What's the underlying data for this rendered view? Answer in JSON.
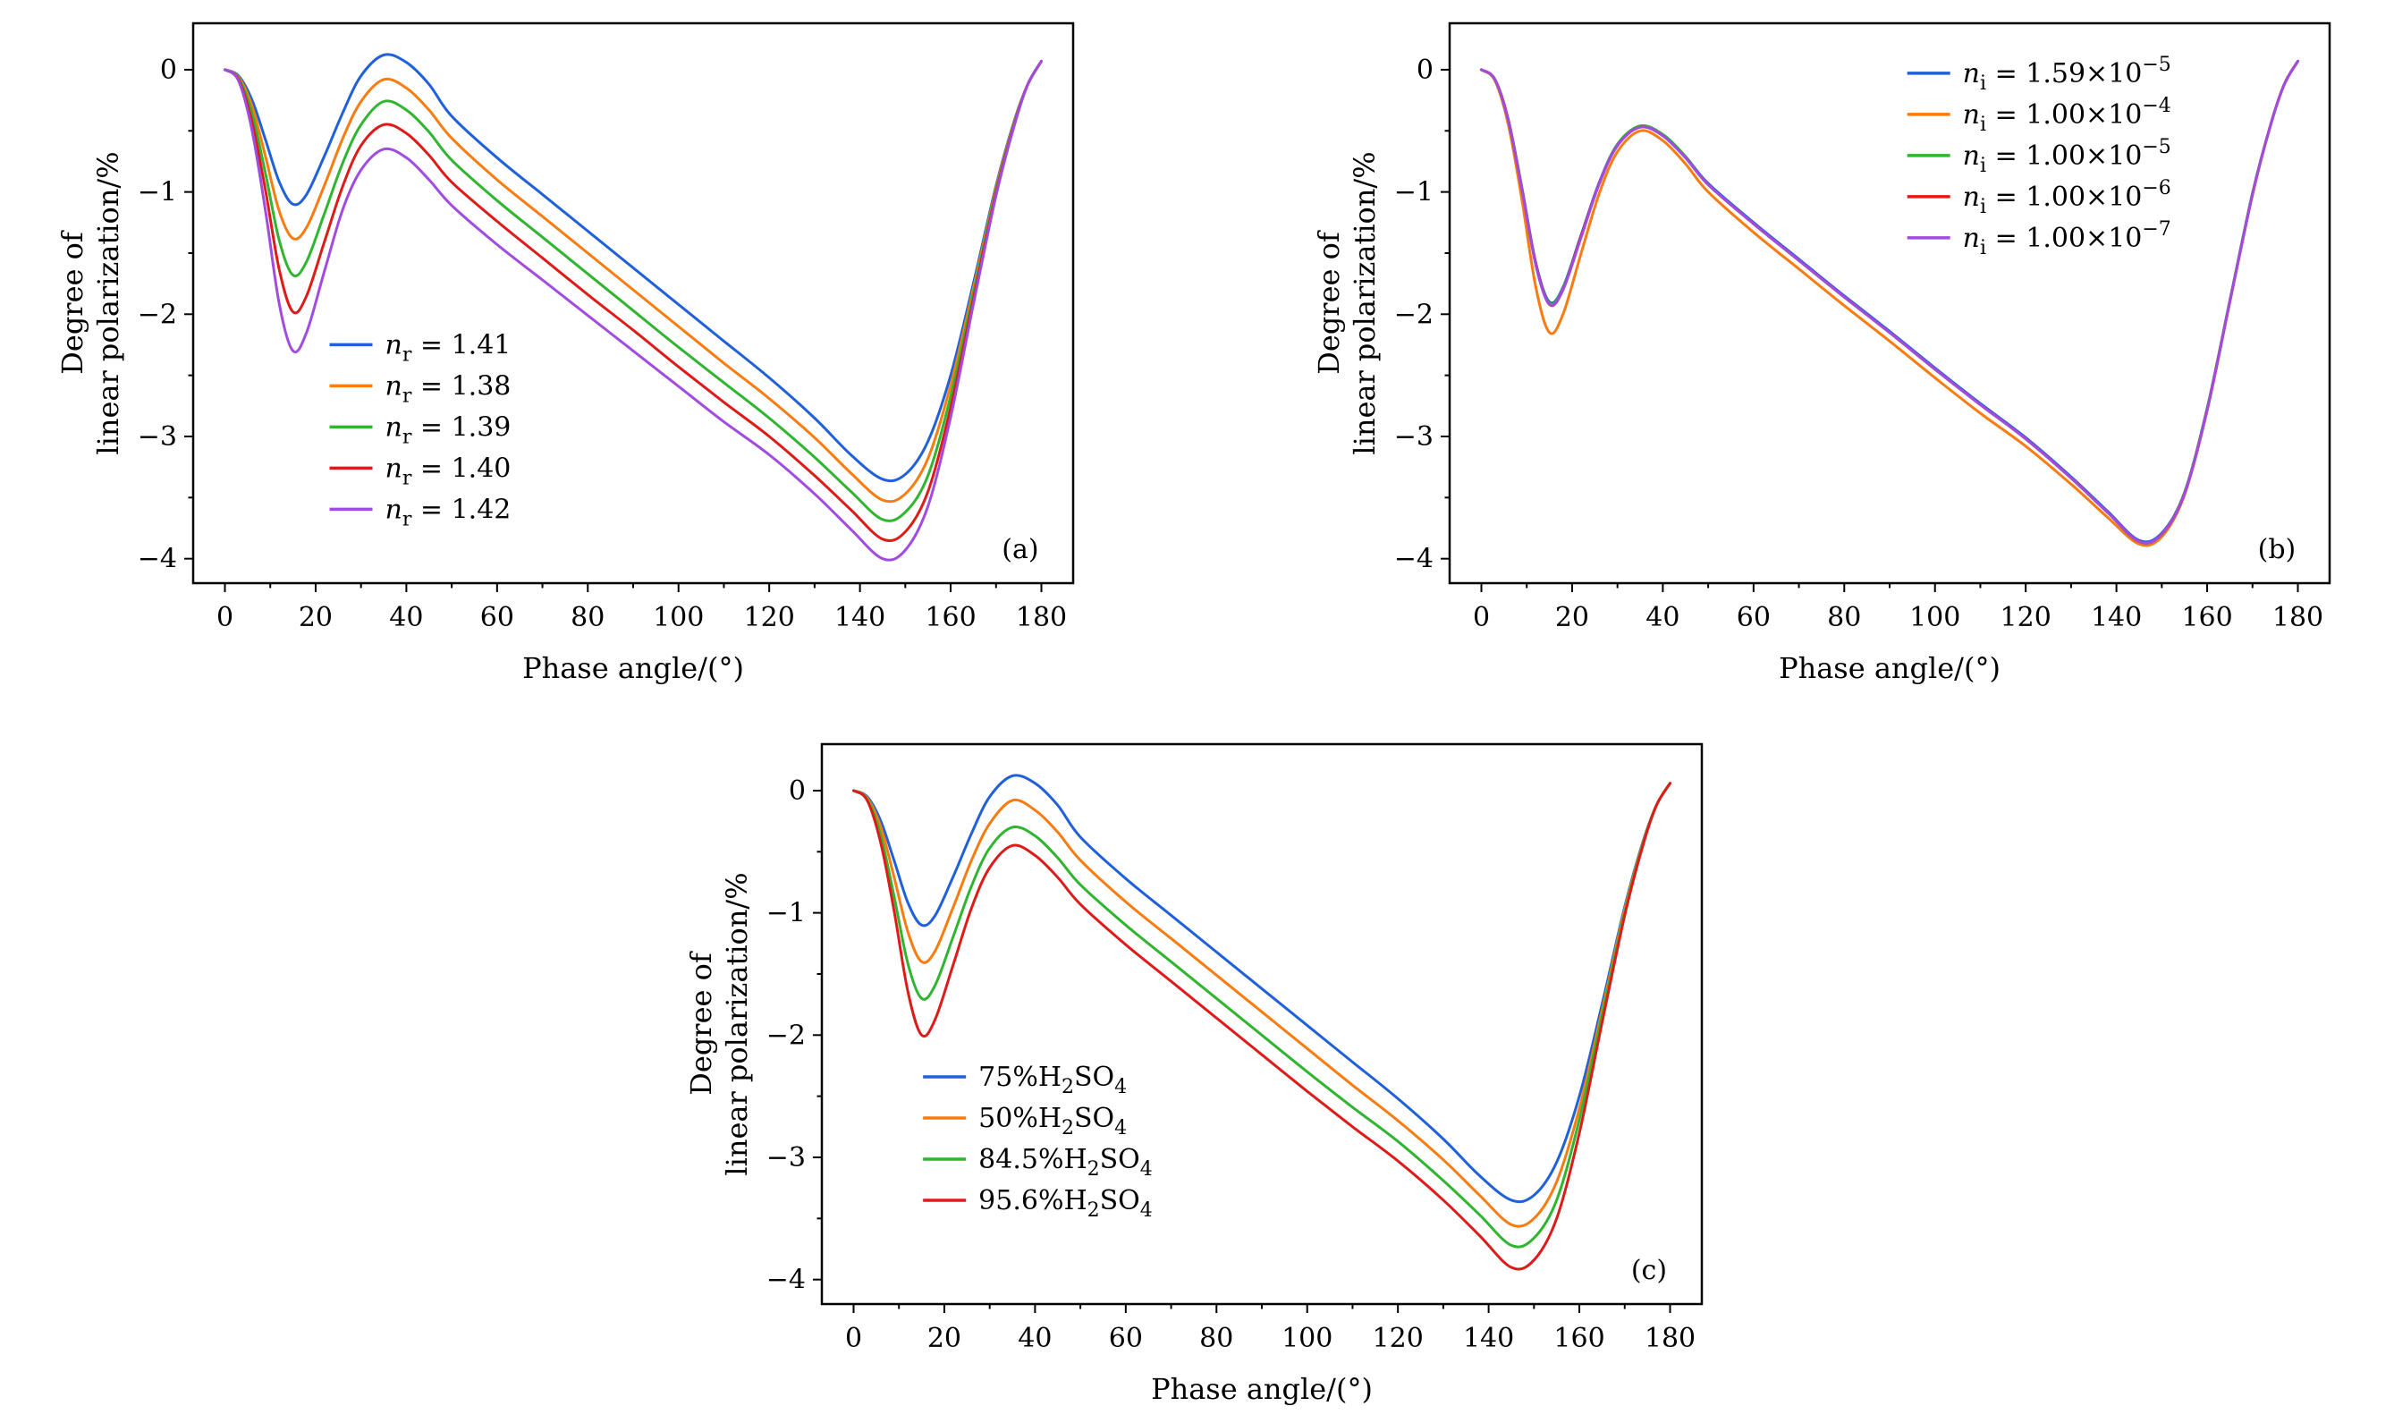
{
  "figure": {
    "background": "#ffffff",
    "frame_color": "#000000",
    "text_color": "#000000"
  },
  "chart_data": {
    "type": "line",
    "x_deg": [
      0,
      3,
      6,
      9,
      12,
      15,
      18,
      22,
      26,
      30,
      35,
      40,
      45,
      50,
      60,
      70,
      80,
      90,
      100,
      110,
      120,
      130,
      138,
      145,
      150,
      155,
      160,
      165,
      170,
      174,
      177,
      180
    ],
    "charts": [
      {
        "id": "a",
        "corner_label": "(a)",
        "xlabel": "Phase angle/(°)",
        "ylabel": [
          "Degree of",
          "linear polarization/%"
        ],
        "xlim": [
          -7,
          187
        ],
        "ylim": [
          -4.2,
          0.38
        ],
        "xticks": [
          0,
          20,
          40,
          60,
          80,
          100,
          120,
          140,
          160,
          180
        ],
        "yticks": [
          0,
          -1,
          -2,
          -3,
          -4
        ],
        "x_minor": 10,
        "y_minor": 0.5,
        "grid": false,
        "legend": {
          "position": "center-left",
          "fx": 0.155,
          "fy": 0.555
        },
        "series": [
          {
            "name": "nr = 1.41",
            "color": "#2061d9",
            "label_parts": [
              {
                "t": "n",
                "i": true
              },
              {
                "t": "r",
                "s": -1
              },
              {
                "t": " = 1.41"
              }
            ],
            "y": [
              0,
              -0.05,
              -0.25,
              -0.58,
              -0.92,
              -1.1,
              -1.02,
              -0.7,
              -0.35,
              -0.05,
              0.12,
              0.06,
              -0.12,
              -0.38,
              -0.72,
              -1.02,
              -1.32,
              -1.62,
              -1.92,
              -2.22,
              -2.52,
              -2.85,
              -3.15,
              -3.35,
              -3.31,
              -3.04,
              -2.5,
              -1.75,
              -0.95,
              -0.42,
              -0.12,
              0.07
            ]
          },
          {
            "name": "nr = 1.38",
            "color": "#f97c10",
            "label_parts": [
              {
                "t": "n",
                "i": true
              },
              {
                "t": "r",
                "s": -1
              },
              {
                "t": " = 1.38"
              }
            ],
            "y": [
              0,
              -0.06,
              -0.3,
              -0.72,
              -1.16,
              -1.38,
              -1.29,
              -0.94,
              -0.56,
              -0.26,
              -0.08,
              -0.15,
              -0.33,
              -0.56,
              -0.9,
              -1.2,
              -1.5,
              -1.8,
              -2.1,
              -2.4,
              -2.69,
              -3.01,
              -3.3,
              -3.52,
              -3.47,
              -3.18,
              -2.58,
              -1.79,
              -0.97,
              -0.43,
              -0.12,
              0.07
            ]
          },
          {
            "name": "nr = 1.39",
            "color": "#2fb52f",
            "label_parts": [
              {
                "t": "n",
                "i": true
              },
              {
                "t": "r",
                "s": -1
              },
              {
                "t": " = 1.39"
              }
            ],
            "y": [
              0,
              -0.07,
              -0.36,
              -0.86,
              -1.4,
              -1.68,
              -1.57,
              -1.17,
              -0.76,
              -0.45,
              -0.26,
              -0.33,
              -0.51,
              -0.74,
              -1.07,
              -1.37,
              -1.67,
              -1.97,
              -2.27,
              -2.56,
              -2.85,
              -3.17,
              -3.45,
              -3.68,
              -3.62,
              -3.32,
              -2.67,
              -1.83,
              -0.99,
              -0.44,
              -0.12,
              0.07
            ]
          },
          {
            "name": "nr = 1.40",
            "color": "#dd1c1a",
            "label_parts": [
              {
                "t": "n",
                "i": true
              },
              {
                "t": "r",
                "s": -1
              },
              {
                "t": " = 1.40"
              }
            ],
            "y": [
              0,
              -0.08,
              -0.43,
              -1.0,
              -1.64,
              -1.98,
              -1.85,
              -1.4,
              -0.95,
              -0.62,
              -0.45,
              -0.52,
              -0.7,
              -0.92,
              -1.24,
              -1.54,
              -1.84,
              -2.13,
              -2.43,
              -2.72,
              -3.0,
              -3.32,
              -3.6,
              -3.84,
              -3.78,
              -3.45,
              -2.76,
              -1.88,
              -1.01,
              -0.45,
              -0.12,
              0.07
            ]
          },
          {
            "name": "nr = 1.42",
            "color": "#a24be0",
            "label_parts": [
              {
                "t": "n",
                "i": true
              },
              {
                "t": "r",
                "s": -1
              },
              {
                "t": " = 1.42"
              }
            ],
            "y": [
              0,
              -0.09,
              -0.5,
              -1.17,
              -1.92,
              -2.3,
              -2.15,
              -1.64,
              -1.14,
              -0.82,
              -0.65,
              -0.72,
              -0.9,
              -1.11,
              -1.43,
              -1.72,
              -2.01,
              -2.3,
              -2.59,
              -2.88,
              -3.15,
              -3.47,
              -3.76,
              -4.0,
              -3.93,
              -3.57,
              -2.84,
              -1.92,
              -1.03,
              -0.46,
              -0.12,
              0.07
            ]
          }
        ]
      },
      {
        "id": "b",
        "corner_label": "(b)",
        "xlabel": "Phase angle/(°)",
        "ylabel": [
          "Degree of",
          "linear polarization/%"
        ],
        "xlim": [
          -7,
          187
        ],
        "ylim": [
          -4.2,
          0.38
        ],
        "xticks": [
          0,
          20,
          40,
          60,
          80,
          100,
          120,
          140,
          160,
          180
        ],
        "yticks": [
          0,
          -1,
          -2,
          -3,
          -4
        ],
        "x_minor": 10,
        "y_minor": 0.5,
        "grid": false,
        "legend": {
          "position": "top-right",
          "fx": 0.52,
          "fy": 0.07
        },
        "series": [
          {
            "name": "ni = 1.59e-5",
            "color": "#2061d9",
            "label_parts": [
              {
                "t": "n",
                "i": true
              },
              {
                "t": "i",
                "s": -1
              },
              {
                "t": " = 1.59×10"
              },
              {
                "t": "−5",
                "s": 1
              }
            ],
            "y": [
              0,
              -0.08,
              -0.42,
              -0.98,
              -1.58,
              -1.9,
              -1.78,
              -1.35,
              -0.92,
              -0.61,
              -0.46,
              -0.53,
              -0.71,
              -0.93,
              -1.25,
              -1.55,
              -1.85,
              -2.14,
              -2.44,
              -2.73,
              -3.01,
              -3.33,
              -3.61,
              -3.85,
              -3.79,
              -3.46,
              -2.77,
              -1.89,
              -1.01,
              -0.45,
              -0.12,
              0.07
            ]
          },
          {
            "name": "ni = 1.00e-4",
            "color": "#f97c10",
            "label_parts": [
              {
                "t": "n",
                "i": true
              },
              {
                "t": "i",
                "s": -1
              },
              {
                "t": " = 1.00×10"
              },
              {
                "t": "−4",
                "s": 1
              }
            ],
            "y": [
              0,
              -0.09,
              -0.46,
              -1.08,
              -1.78,
              -2.15,
              -2.0,
              -1.5,
              -1.01,
              -0.67,
              -0.5,
              -0.58,
              -0.77,
              -1.0,
              -1.33,
              -1.63,
              -1.93,
              -2.22,
              -2.52,
              -2.81,
              -3.08,
              -3.39,
              -3.66,
              -3.88,
              -3.82,
              -3.48,
              -2.79,
              -1.9,
              -1.02,
              -0.45,
              -0.12,
              0.07
            ]
          },
          {
            "name": "ni = 1.00e-5",
            "color": "#2fb52f",
            "label_parts": [
              {
                "t": "n",
                "i": true
              },
              {
                "t": "i",
                "s": -1
              },
              {
                "t": " = 1.00×10"
              },
              {
                "t": "−5",
                "s": 1
              }
            ],
            "y": [
              0,
              -0.08,
              -0.42,
              -0.98,
              -1.59,
              -1.91,
              -1.79,
              -1.36,
              -0.93,
              -0.61,
              -0.46,
              -0.53,
              -0.71,
              -0.94,
              -1.26,
              -1.56,
              -1.86,
              -2.15,
              -2.45,
              -2.74,
              -3.02,
              -3.34,
              -3.62,
              -3.86,
              -3.8,
              -3.46,
              -2.77,
              -1.89,
              -1.01,
              -0.45,
              -0.12,
              0.07
            ]
          },
          {
            "name": "ni = 1.00e-6",
            "color": "#dd1c1a",
            "label_parts": [
              {
                "t": "n",
                "i": true
              },
              {
                "t": "i",
                "s": -1
              },
              {
                "t": " = 1.00×10"
              },
              {
                "t": "−6",
                "s": 1
              }
            ],
            "y": [
              0,
              -0.08,
              -0.42,
              -0.99,
              -1.59,
              -1.92,
              -1.8,
              -1.36,
              -0.93,
              -0.62,
              -0.47,
              -0.54,
              -0.72,
              -0.94,
              -1.26,
              -1.56,
              -1.86,
              -2.15,
              -2.45,
              -2.74,
              -3.02,
              -3.34,
              -3.62,
              -3.86,
              -3.8,
              -3.47,
              -2.78,
              -1.9,
              -1.02,
              -0.45,
              -0.12,
              0.07
            ]
          },
          {
            "name": "ni = 1.00e-7",
            "color": "#a24be0",
            "label_parts": [
              {
                "t": "n",
                "i": true
              },
              {
                "t": "i",
                "s": -1
              },
              {
                "t": " = 1.00×10"
              },
              {
                "t": "−7",
                "s": 1
              }
            ],
            "y": [
              0,
              -0.08,
              -0.43,
              -0.99,
              -1.6,
              -1.92,
              -1.8,
              -1.37,
              -0.93,
              -0.62,
              -0.47,
              -0.54,
              -0.72,
              -0.94,
              -1.26,
              -1.56,
              -1.86,
              -2.15,
              -2.45,
              -2.74,
              -3.02,
              -3.34,
              -3.62,
              -3.86,
              -3.8,
              -3.47,
              -2.78,
              -1.9,
              -1.02,
              -0.45,
              -0.12,
              0.07
            ]
          }
        ]
      },
      {
        "id": "c",
        "corner_label": "(c)",
        "xlabel": "Phase angle/(°)",
        "ylabel": [
          "Degree of",
          "linear polarization/%"
        ],
        "xlim": [
          -7,
          187
        ],
        "ylim": [
          -4.2,
          0.38
        ],
        "xticks": [
          0,
          20,
          40,
          60,
          80,
          100,
          120,
          140,
          160,
          180
        ],
        "yticks": [
          0,
          -1,
          -2,
          -3,
          -4
        ],
        "x_minor": 10,
        "y_minor": 0.5,
        "grid": false,
        "legend": {
          "position": "center-left",
          "fx": 0.115,
          "fy": 0.575
        },
        "series": [
          {
            "name": "75%H2SO4",
            "color": "#2061d9",
            "label_parts": [
              {
                "t": "75%H"
              },
              {
                "t": "2",
                "s": -1
              },
              {
                "t": "SO"
              },
              {
                "t": "4",
                "s": -1
              }
            ],
            "y": [
              0,
              -0.05,
              -0.25,
              -0.58,
              -0.92,
              -1.1,
              -1.02,
              -0.7,
              -0.35,
              -0.05,
              0.12,
              0.06,
              -0.12,
              -0.38,
              -0.72,
              -1.02,
              -1.32,
              -1.62,
              -1.92,
              -2.22,
              -2.52,
              -2.85,
              -3.15,
              -3.35,
              -3.31,
              -3.04,
              -2.5,
              -1.75,
              -0.95,
              -0.42,
              -0.12,
              0.06
            ]
          },
          {
            "name": "50%H2SO4",
            "color": "#f97c10",
            "label_parts": [
              {
                "t": "50%H"
              },
              {
                "t": "2",
                "s": -1
              },
              {
                "t": "SO"
              },
              {
                "t": "4",
                "s": -1
              }
            ],
            "y": [
              0,
              -0.06,
              -0.3,
              -0.72,
              -1.16,
              -1.4,
              -1.31,
              -0.95,
              -0.57,
              -0.27,
              -0.08,
              -0.16,
              -0.34,
              -0.57,
              -0.91,
              -1.21,
              -1.51,
              -1.81,
              -2.11,
              -2.41,
              -2.7,
              -3.02,
              -3.31,
              -3.55,
              -3.5,
              -3.2,
              -2.6,
              -1.8,
              -0.97,
              -0.43,
              -0.12,
              0.06
            ]
          },
          {
            "name": "84.5%H2SO4",
            "color": "#2fb52f",
            "label_parts": [
              {
                "t": "84.5%H"
              },
              {
                "t": "2",
                "s": -1
              },
              {
                "t": "SO"
              },
              {
                "t": "4",
                "s": -1
              }
            ],
            "y": [
              0,
              -0.07,
              -0.37,
              -0.88,
              -1.42,
              -1.7,
              -1.59,
              -1.19,
              -0.78,
              -0.47,
              -0.3,
              -0.37,
              -0.55,
              -0.77,
              -1.1,
              -1.4,
              -1.7,
              -2.0,
              -2.3,
              -2.59,
              -2.87,
              -3.19,
              -3.47,
              -3.72,
              -3.66,
              -3.35,
              -2.69,
              -1.84,
              -1.0,
              -0.44,
              -0.12,
              0.06
            ]
          },
          {
            "name": "95.6%H2SO4",
            "color": "#dd1c1a",
            "label_parts": [
              {
                "t": "95.6%H"
              },
              {
                "t": "2",
                "s": -1
              },
              {
                "t": "SO"
              },
              {
                "t": "4",
                "s": -1
              }
            ],
            "y": [
              0,
              -0.08,
              -0.43,
              -1.0,
              -1.65,
              -2.0,
              -1.87,
              -1.42,
              -0.96,
              -0.63,
              -0.45,
              -0.53,
              -0.71,
              -0.93,
              -1.26,
              -1.56,
              -1.86,
              -2.16,
              -2.46,
              -2.75,
              -3.03,
              -3.35,
              -3.64,
              -3.9,
              -3.84,
              -3.5,
              -2.8,
              -1.9,
              -1.02,
              -0.45,
              -0.12,
              0.06
            ]
          }
        ]
      }
    ]
  }
}
